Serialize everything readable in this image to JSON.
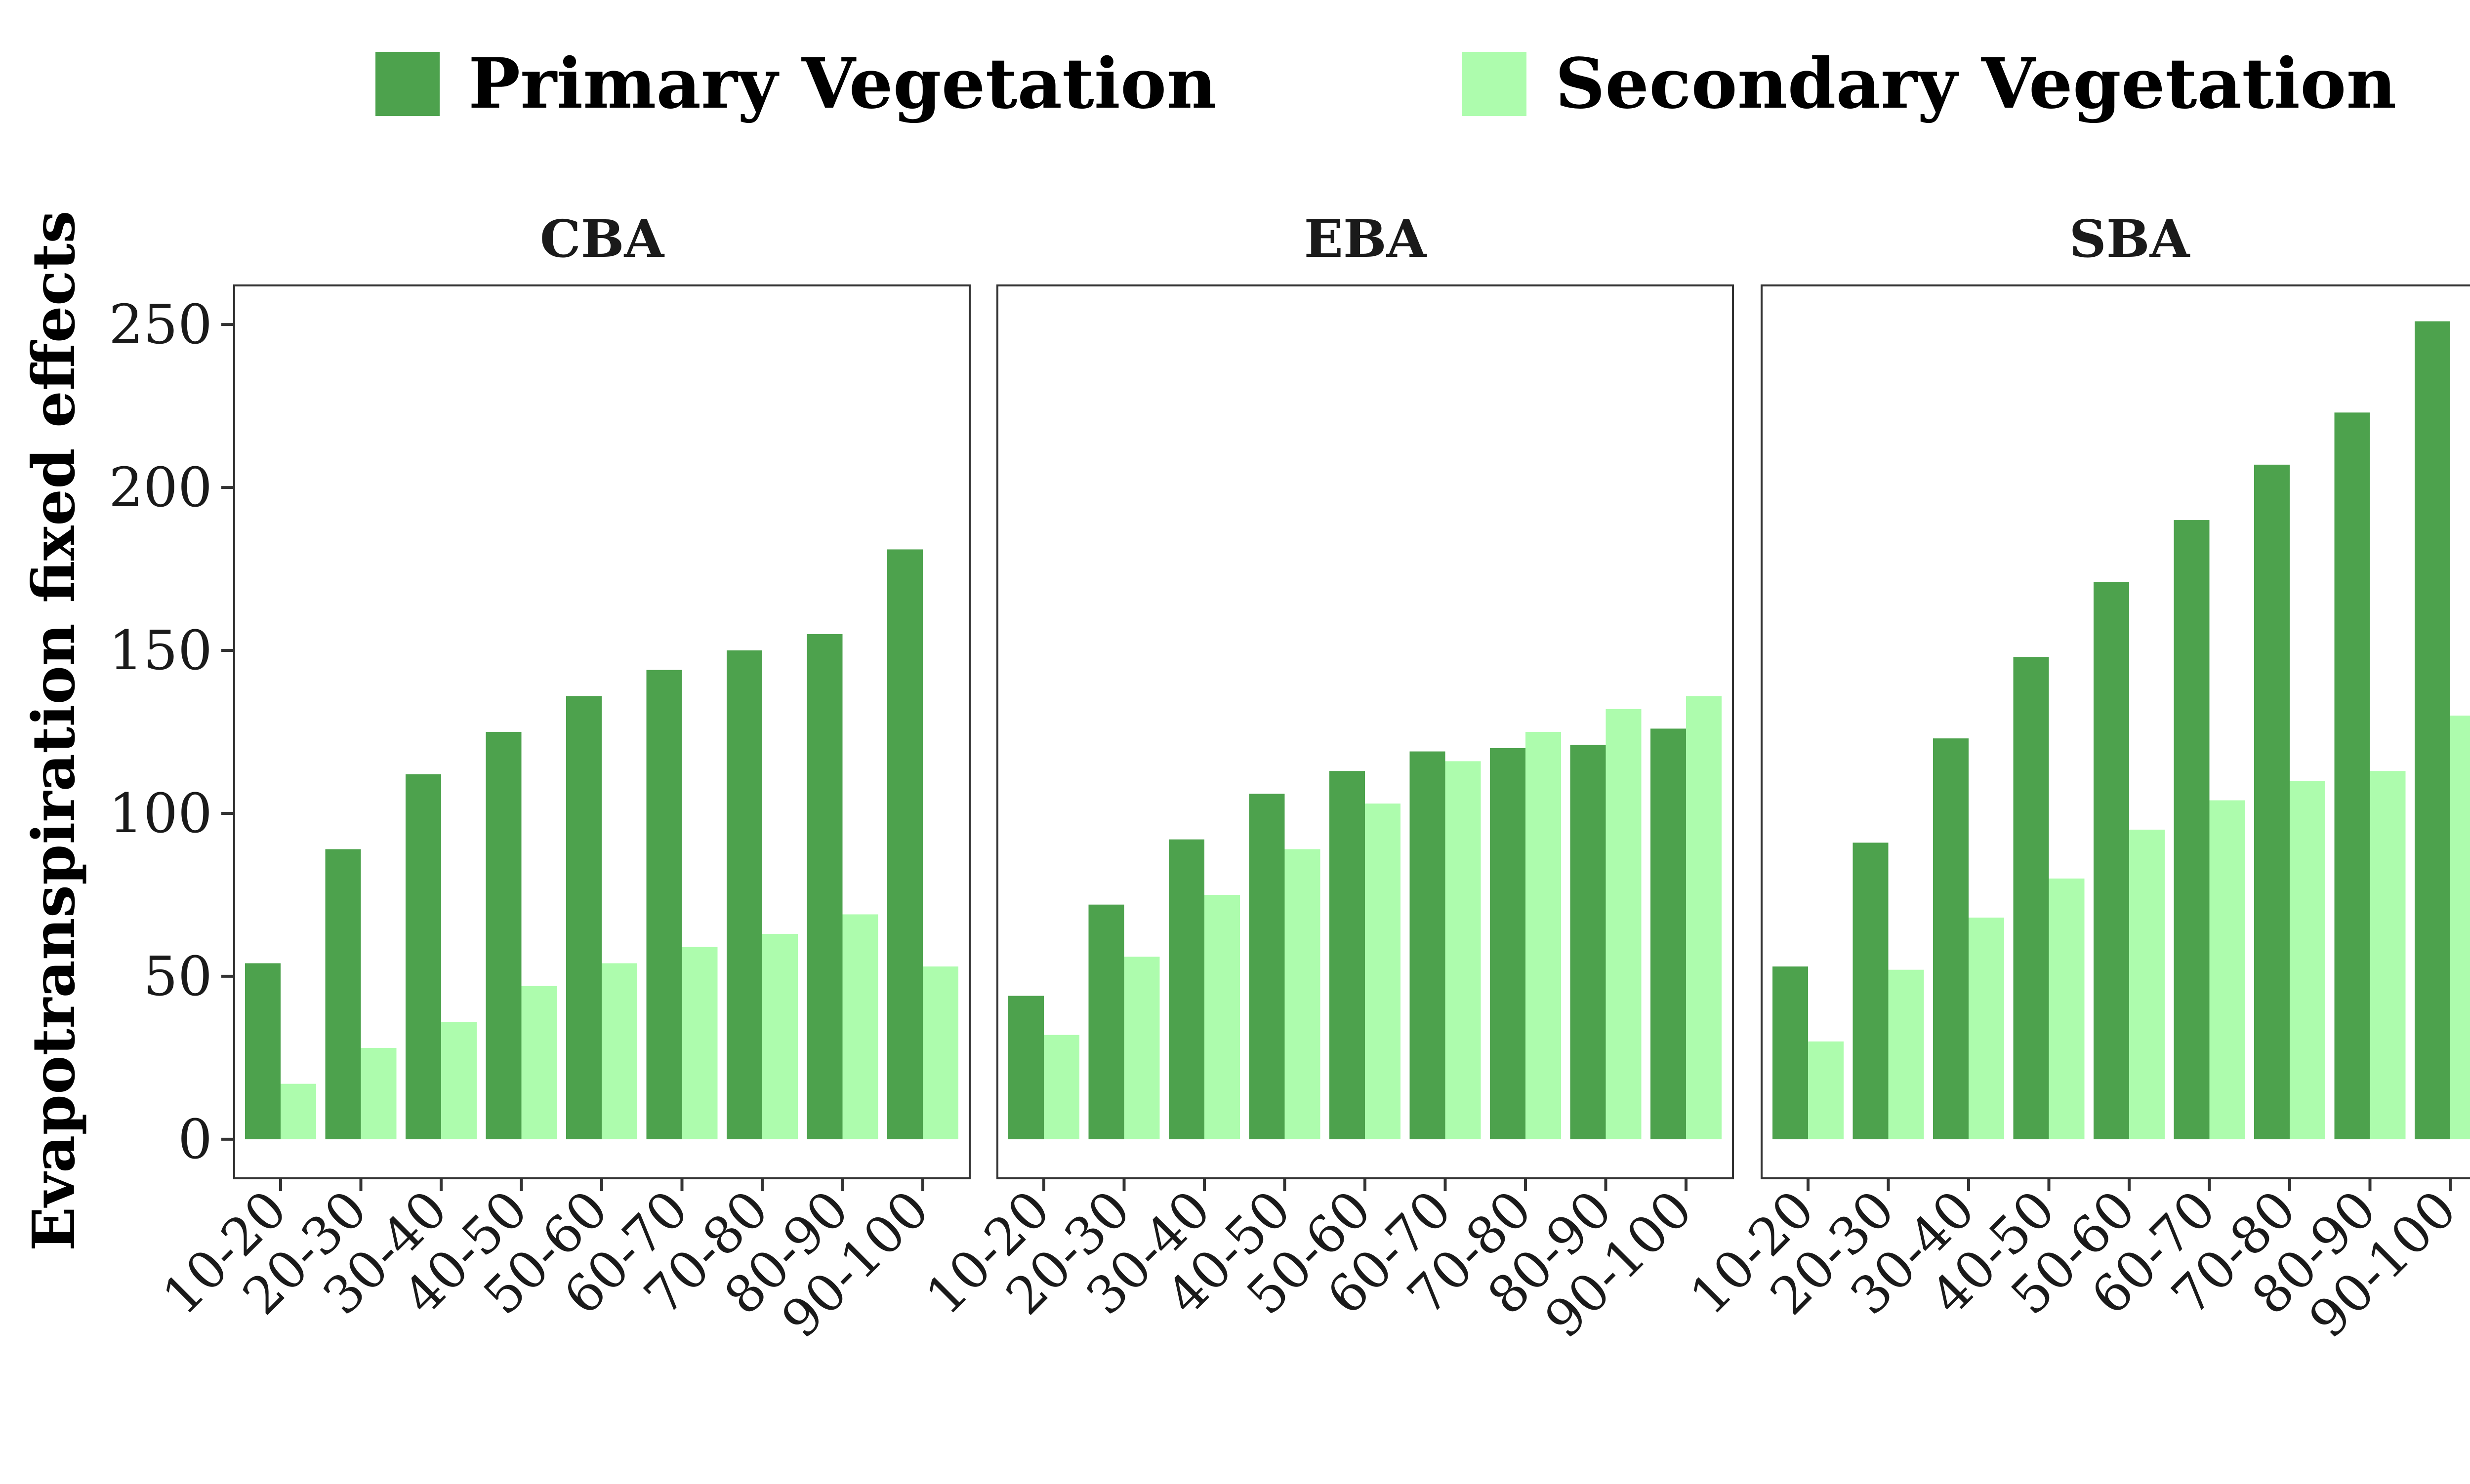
{
  "chart_data": {
    "type": "bar",
    "ylabel": "Evapotranspiration fixed effects",
    "ylim": [
      -12,
      262
    ],
    "yticks": [
      0,
      50,
      100,
      150,
      200,
      250
    ],
    "categories": [
      "10-20",
      "20-30",
      "30-40",
      "40-50",
      "50-60",
      "60-70",
      "70-80",
      "80-90",
      "90-100"
    ],
    "legend": {
      "placement": "top",
      "entries": [
        {
          "name": "Primary Vegetation",
          "color": "#4da24d"
        },
        {
          "name": "Secondary Vegetation",
          "color": "#adfcad"
        }
      ]
    },
    "grid": false,
    "facets": [
      {
        "title": "CBA",
        "series": [
          {
            "name": "Primary Vegetation",
            "values": [
              54,
              89,
              112,
              125,
              136,
              144,
              150,
              155,
              181
            ]
          },
          {
            "name": "Secondary Vegetation",
            "values": [
              17,
              28,
              36,
              47,
              54,
              59,
              63,
              69,
              53
            ]
          }
        ]
      },
      {
        "title": "EBA",
        "series": [
          {
            "name": "Primary Vegetation",
            "values": [
              44,
              72,
              92,
              106,
              113,
              119,
              120,
              121,
              126
            ]
          },
          {
            "name": "Secondary Vegetation",
            "values": [
              32,
              56,
              75,
              89,
              103,
              116,
              125,
              132,
              136
            ]
          }
        ]
      },
      {
        "title": "SBA",
        "series": [
          {
            "name": "Primary Vegetation",
            "values": [
              53,
              91,
              123,
              148,
              171,
              190,
              207,
              223,
              251
            ]
          },
          {
            "name": "Secondary Vegetation",
            "values": [
              30,
              52,
              68,
              80,
              95,
              104,
              110,
              113,
              130
            ]
          }
        ]
      }
    ]
  }
}
